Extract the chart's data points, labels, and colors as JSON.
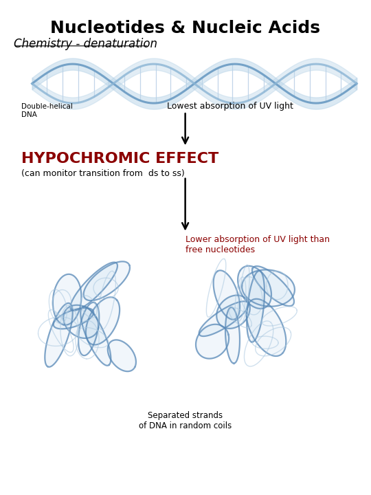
{
  "title": "Nucleotides & Nucleic Acids",
  "subtitle": "Chemistry - denaturation",
  "label_top": "Lowest absorption of UV light",
  "label_middle_main": "HYPOCHROMIC EFFECT",
  "label_middle_sub": "(can monitor transition from  ds to ss)",
  "label_bottom_text": "Lower absorption of UV light than\nfree nucleotides",
  "label_bottom_img": "Separated strands\nof DNA in random coils",
  "label_dna_double": "Double-helical\nDNA",
  "title_fontsize": 18,
  "subtitle_fontsize": 12,
  "label_fontsize": 9,
  "main_label_fontsize": 16,
  "bg_color": "#ffffff",
  "text_color_black": "#000000",
  "text_color_red": "#8b0000",
  "arrow_color": "#000000",
  "helix_color1": "#6a9bc3",
  "helix_color2": "#8ab4d4",
  "helix_fill1": "#b8d4e8",
  "helix_rung": "#a8c4e0",
  "coil_color1": "#5a8ab8",
  "coil_color2": "#aac8e0",
  "coil_fill": "#c8dff0"
}
